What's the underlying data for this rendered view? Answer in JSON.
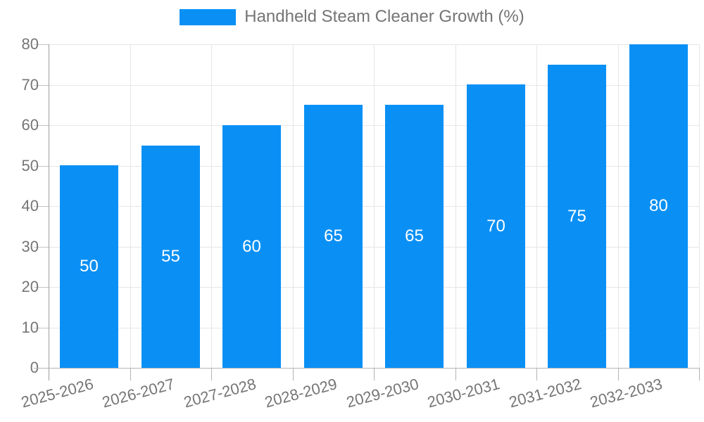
{
  "legend": {
    "label": "Handheld Steam Cleaner Growth (%)"
  },
  "chart_data": {
    "type": "bar",
    "title": "",
    "xlabel": "",
    "ylabel": "",
    "categories": [
      "2025-2026",
      "2026-2027",
      "2027-2028",
      "2028-2029",
      "2029-2030",
      "2030-2031",
      "2031-2032",
      "2032-2033"
    ],
    "values": [
      50,
      55,
      60,
      65,
      65,
      70,
      75,
      80
    ],
    "series_name": "Handheld Steam Cleaner Growth (%)",
    "value_labels": [
      "50",
      "55",
      "60",
      "65",
      "65",
      "70",
      "75",
      "80"
    ],
    "ylim": [
      0,
      80
    ],
    "ytick_step": 10,
    "ytick_labels": [
      "0",
      "10",
      "20",
      "30",
      "40",
      "50",
      "60",
      "70",
      "80"
    ],
    "grid": true,
    "legend_position": "top-center",
    "xlabel_rotation_deg": -15,
    "colors": {
      "bar": "#0a90f5",
      "value_label": "#ffffff",
      "axis_text": "#757575",
      "gridline": "#e6e6e6",
      "axis_line": "#9e9e9e",
      "background": "#ffffff"
    }
  }
}
